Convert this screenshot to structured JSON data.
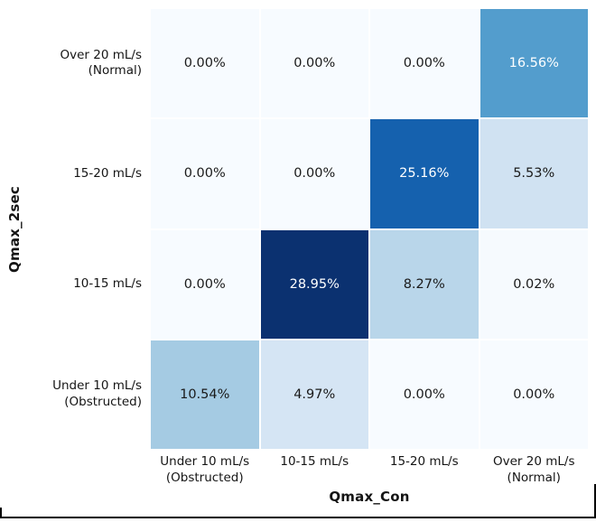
{
  "figure": {
    "background": "#ffffff",
    "frame_border_color": "#000000"
  },
  "chart_data": {
    "type": "heatmap",
    "title": "",
    "xlabel": "Qmax_Con",
    "ylabel": "Qmax_2sec",
    "colormap": "Blues",
    "value_min": 0.0,
    "value_max": 28.95,
    "grid_line_color": "#ffffff",
    "x_categories": [
      "Under 10 mL/s\n(Obstructed)",
      "10-15 mL/s",
      "15-20 mL/s",
      "Over 20 mL/s\n(Normal)"
    ],
    "y_categories": [
      "Over 20 mL/s\n(Normal)",
      "15-20 mL/s",
      "10-15 mL/s",
      "Under 10 mL/s\n(Obstructed)"
    ],
    "values": [
      [
        0.0,
        0.0,
        0.0,
        16.56
      ],
      [
        0.0,
        0.0,
        25.16,
        5.53
      ],
      [
        0.0,
        28.95,
        8.27,
        0.02
      ],
      [
        10.54,
        4.97,
        0.0,
        0.0
      ]
    ],
    "cell_labels": [
      [
        "0.00%",
        "0.00%",
        "0.00%",
        "16.56%"
      ],
      [
        "0.00%",
        "0.00%",
        "25.16%",
        "5.53%"
      ],
      [
        "0.00%",
        "28.95%",
        "8.27%",
        "0.02%"
      ],
      [
        "10.54%",
        "4.97%",
        "0.00%",
        "0.00%"
      ]
    ],
    "cell_colors": [
      [
        "#f7fbff",
        "#f7fbff",
        "#f7fbff",
        "#539dcd"
      ],
      [
        "#f7fbff",
        "#f7fbff",
        "#1561ae",
        "#d0e2f2"
      ],
      [
        "#f7fbff",
        "#0b3170",
        "#b9d6ea",
        "#f6fafe"
      ],
      [
        "#a5cbe3",
        "#d5e5f4",
        "#f7fbff",
        "#f7fbff"
      ]
    ],
    "cell_text_colors": [
      [
        "#1a1a1a",
        "#1a1a1a",
        "#1a1a1a",
        "#ffffff"
      ],
      [
        "#1a1a1a",
        "#1a1a1a",
        "#ffffff",
        "#1a1a1a"
      ],
      [
        "#1a1a1a",
        "#ffffff",
        "#1a1a1a",
        "#1a1a1a"
      ],
      [
        "#1a1a1a",
        "#1a1a1a",
        "#1a1a1a",
        "#1a1a1a"
      ]
    ]
  }
}
